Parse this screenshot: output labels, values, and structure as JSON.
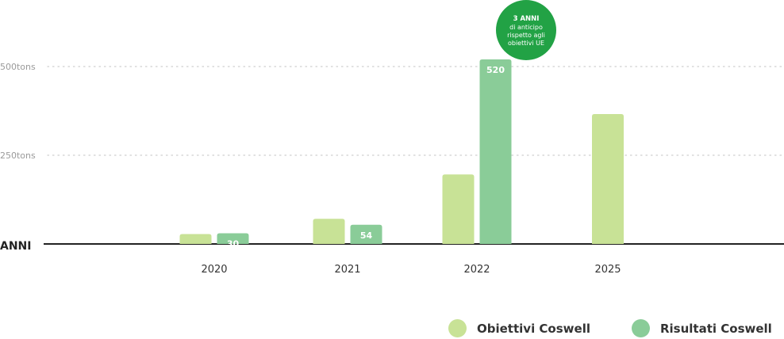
{
  "chart_data": {
    "type": "bar",
    "categories": [
      "2020",
      "2021",
      "2022",
      "2025"
    ],
    "series": [
      {
        "name": "Obiettivi Coswell",
        "color": "#c8e296",
        "values": [
          28,
          71,
          196,
          366
        ],
        "labels": [
          null,
          null,
          null,
          null
        ]
      },
      {
        "name": "Risultati Coswell",
        "color": "#8acc98",
        "values": [
          30,
          54,
          520,
          null
        ],
        "labels": [
          "30",
          "54",
          "520",
          null
        ]
      }
    ],
    "xlabel": "ANNI",
    "ylabel": "",
    "yticks": [
      {
        "value": 250,
        "label": "250tons"
      },
      {
        "value": 500,
        "label": "500tons"
      }
    ],
    "ylim": [
      0,
      550
    ],
    "grid": "dotted",
    "annotation": {
      "category": "2022",
      "color": "#22a245",
      "title": "3 ANNI",
      "lines": [
        "di anticipo",
        "rispetto agli",
        "obiettivi UE"
      ]
    },
    "legend_position": "bottom-right"
  }
}
